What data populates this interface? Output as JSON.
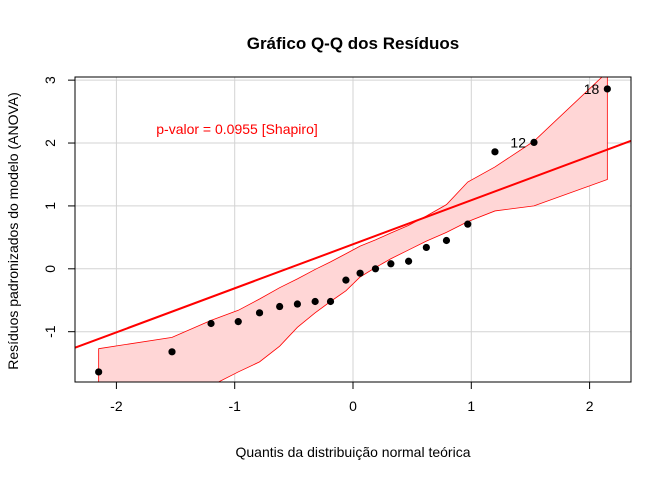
{
  "chart_data": {
    "type": "scatter",
    "title": "Gráfico Q-Q dos Resíduos",
    "xlabel": "Quantis da distribuição normal teórica",
    "ylabel": "Resíduos padronizados do modelo (ANOVA)",
    "xlim": [
      -2.35,
      2.35
    ],
    "ylim": [
      -1.8,
      3.05
    ],
    "grid": true,
    "x_ticks": [
      -2,
      -1,
      0,
      1,
      2
    ],
    "x_tick_labels": [
      "-2",
      "-1",
      "0",
      "1",
      "2"
    ],
    "y_ticks": [
      -1,
      0,
      1,
      2,
      3
    ],
    "y_tick_labels": [
      "-1",
      "0",
      "1",
      "2",
      "3"
    ],
    "annotation": "p-valor = 0.0955 [Shapiro]",
    "colors": {
      "points": "#000000",
      "reference_line": "#ff0000",
      "band_fill": "#ffd6d6",
      "band_edge": "#ff0000",
      "annotation": "#ff0000",
      "grid": "#d3d3d3",
      "axes": "#000000"
    },
    "reference_line": {
      "intercept": 0.39,
      "slope": 0.7
    },
    "confidence_band": {
      "x": [
        -2.15,
        -1.53,
        -1.2,
        -0.97,
        -0.79,
        -0.62,
        -0.47,
        -0.32,
        -0.19,
        -0.06,
        0.06,
        0.19,
        0.32,
        0.47,
        0.62,
        0.79,
        0.97,
        1.2,
        1.53,
        2.15
      ],
      "upper": [
        -1.27,
        -1.09,
        -0.82,
        -0.66,
        -0.48,
        -0.3,
        -0.16,
        -0.01,
        0.11,
        0.24,
        0.36,
        0.46,
        0.57,
        0.69,
        0.84,
        1.02,
        1.38,
        1.62,
        2.03,
        3.13
      ],
      "lower": [
        -2.55,
        -2.12,
        -1.86,
        -1.64,
        -1.48,
        -1.23,
        -0.93,
        -0.7,
        -0.52,
        -0.35,
        -0.13,
        0.02,
        0.16,
        0.3,
        0.44,
        0.58,
        0.75,
        0.92,
        1.0,
        1.42
      ]
    },
    "points": {
      "x": [
        -2.15,
        -1.53,
        -1.2,
        -0.97,
        -0.79,
        -0.62,
        -0.47,
        -0.32,
        -0.19,
        -0.06,
        0.06,
        0.19,
        0.32,
        0.47,
        0.62,
        0.79,
        0.97,
        1.2,
        1.53,
        2.15
      ],
      "y": [
        -1.64,
        -1.32,
        -0.87,
        -0.84,
        -0.7,
        -0.6,
        -0.56,
        -0.52,
        -0.52,
        -0.18,
        -0.07,
        0.0,
        0.08,
        0.12,
        0.34,
        0.45,
        0.71,
        1.86,
        2.01,
        2.86
      ]
    },
    "point_labels": [
      {
        "index": 18,
        "text": "12"
      },
      {
        "index": 19,
        "text": "18"
      }
    ]
  }
}
